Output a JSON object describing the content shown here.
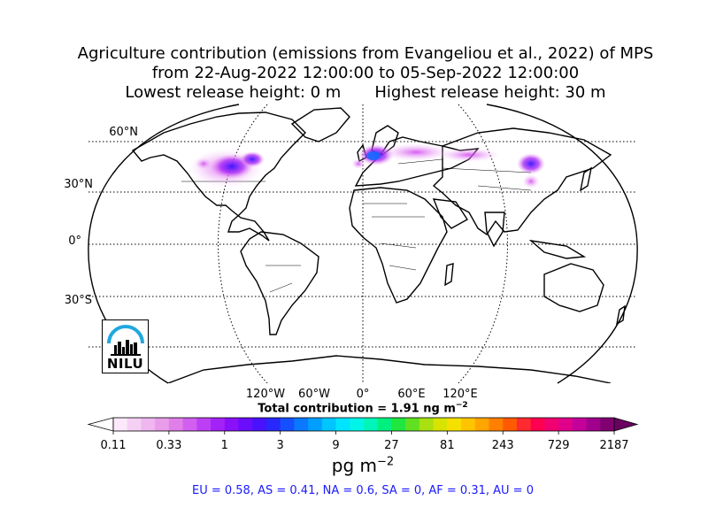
{
  "title": {
    "line1": "Agriculture contribution (emissions from Evangeliou et al., 2022) of MPS",
    "line2": "from 22-Aug-2022 12:00:00 to 05-Sep-2022 12:00:00",
    "lowest": "Lowest release height: 0 m",
    "highest": "Highest release height: 30 m"
  },
  "map": {
    "projection": "robinson",
    "lat_labels": [
      "60°N",
      "30°N",
      "0°",
      "30°S"
    ],
    "lon_labels": [
      "120°W",
      "60°W",
      "0°",
      "60°E",
      "120°E"
    ],
    "total_prefix": "Total contribution = 1.91 ng m",
    "total_exp": "−2"
  },
  "colorbar": {
    "ticks": [
      "0.11",
      "0.33",
      "1",
      "3",
      "9",
      "27",
      "81",
      "243",
      "729",
      "2187"
    ],
    "unit_base": "pg m",
    "unit_exp": "−2",
    "colors": [
      "#fbe9fb",
      "#f5d0f5",
      "#efb6ef",
      "#e99ce9",
      "#e07fe8",
      "#d25ff0",
      "#bd3ff5",
      "#a322f8",
      "#8a10fa",
      "#6a0dfb",
      "#4a12fc",
      "#2828fd",
      "#1450ff",
      "#0a78ff",
      "#009fff",
      "#00c6ff",
      "#00e4ff",
      "#00f5e8",
      "#00f5b8",
      "#00f080",
      "#20e640",
      "#60e020",
      "#a8e010",
      "#d8e400",
      "#f5e000",
      "#ffc400",
      "#ffa500",
      "#ff8000",
      "#ff5a00",
      "#ff2a30",
      "#ff0050",
      "#f00070",
      "#e0008a",
      "#c4009a",
      "#a0008c",
      "#800070"
    ],
    "under_color": "#ffffff",
    "over_color": "#6a0060"
  },
  "regions": "EU = 0.58,  AS = 0.41,  NA = 0.6,  SA = 0,  AF = 0.31,  AU = 0",
  "logo": {
    "text": "NILU",
    "accent": "#1fa8e0"
  }
}
